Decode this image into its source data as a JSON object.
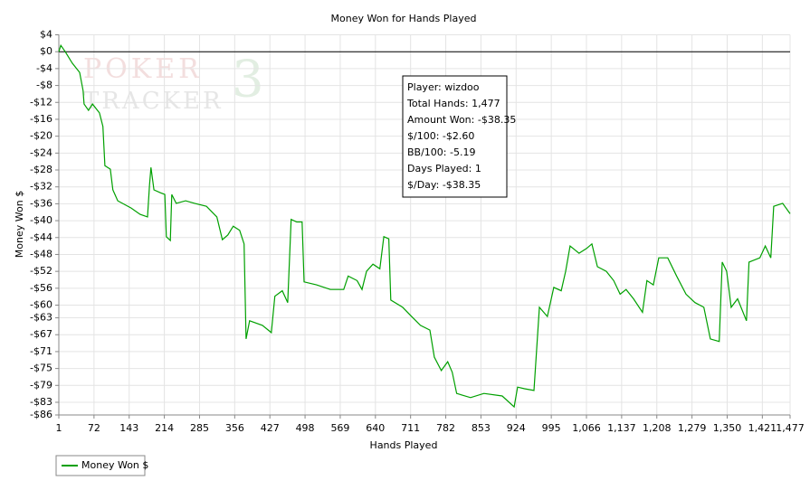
{
  "chart_data": {
    "type": "line",
    "title": "Money Won for Hands Played",
    "xlabel": "Hands Played",
    "ylabel": "Money Won $",
    "watermark": [
      "POKER",
      "TRACKER",
      "3"
    ],
    "info": [
      "Player: wizdoo",
      "Total Hands: 1,477",
      "Amount Won: -$38.35",
      "$/100: -$2.60",
      "BB/100: -5.19",
      "Days Played: 1",
      "$/Day: -$38.35"
    ],
    "xlim": [
      1,
      1477
    ],
    "ylim": [
      -86,
      4
    ],
    "grid": true,
    "xticks": [
      1,
      72,
      143,
      214,
      285,
      356,
      427,
      498,
      569,
      640,
      711,
      782,
      853,
      924,
      995,
      {
        "value": 1066,
        "label": "1,066"
      },
      {
        "value": 1137,
        "label": "1,137"
      },
      {
        "value": 1208,
        "label": "1,208"
      },
      {
        "value": 1279,
        "label": "1,279"
      },
      {
        "value": 1350,
        "label": "1,350"
      },
      {
        "value": 1421,
        "label": "1,421"
      },
      {
        "value": 1477,
        "label": "1,477"
      }
    ],
    "yticks": [
      {
        "value": 4,
        "label": "$4"
      },
      {
        "value": 0,
        "label": "$0"
      },
      {
        "value": -4,
        "label": "-$4"
      },
      {
        "value": -8,
        "label": "-$8"
      },
      {
        "value": -12,
        "label": "-$12"
      },
      {
        "value": -16,
        "label": "-$16"
      },
      {
        "value": -20,
        "label": "-$20"
      },
      {
        "value": -24,
        "label": "-$24"
      },
      {
        "value": -28,
        "label": "-$28"
      },
      {
        "value": -32,
        "label": "-$32"
      },
      {
        "value": -36,
        "label": "-$36"
      },
      {
        "value": -40,
        "label": "-$40"
      },
      {
        "value": -44,
        "label": "-$44"
      },
      {
        "value": -48,
        "label": "-$48"
      },
      {
        "value": -52,
        "label": "-$52"
      },
      {
        "value": -56,
        "label": "-$56"
      },
      {
        "value": -60,
        "label": "-$60"
      },
      {
        "value": -63,
        "label": "-$63"
      },
      {
        "value": -67,
        "label": "-$67"
      },
      {
        "value": -71,
        "label": "-$71"
      },
      {
        "value": -75,
        "label": "-$75"
      },
      {
        "value": -79,
        "label": "-$79"
      },
      {
        "value": -83,
        "label": "-$83"
      },
      {
        "value": -86,
        "label": "-$86"
      }
    ],
    "x": [
      1,
      5,
      14,
      28,
      43,
      50,
      52,
      61,
      69,
      83,
      90,
      94,
      105,
      110,
      120,
      147,
      165,
      180,
      184,
      187,
      193,
      206,
      215,
      218,
      226,
      229,
      238,
      257,
      275,
      299,
      320,
      331,
      342,
      353,
      366,
      375,
      379,
      386,
      412,
      430,
      437,
      452,
      463,
      470,
      481,
      492,
      496,
      521,
      549,
      576,
      585,
      603,
      613,
      622,
      635,
      649,
      657,
      667,
      671,
      695,
      713,
      731,
      750,
      759,
      773,
      786,
      795,
      804,
      832,
      859,
      896,
      920,
      927,
      941,
      960,
      971,
      987,
      1000,
      1015,
      1024,
      1033,
      1051,
      1066,
      1077,
      1088,
      1106,
      1121,
      1134,
      1146,
      1161,
      1179,
      1188,
      1201,
      1212,
      1230,
      1248,
      1267,
      1285,
      1303,
      1316,
      1334,
      1340,
      1349,
      1358,
      1371,
      1389,
      1394,
      1416,
      1427,
      1438,
      1444,
      1462,
      1477
    ],
    "series": [
      {
        "name": "Money Won $",
        "color": "#00a000",
        "values": [
          0,
          1.5,
          0,
          -2.7,
          -4.9,
          -9.2,
          -12.4,
          -13.9,
          -12.4,
          -14.5,
          -17.7,
          -27,
          -27.8,
          -32.7,
          -35.3,
          -37,
          -38.5,
          -39.1,
          -31.6,
          -27.4,
          -32.7,
          -33.4,
          -33.8,
          -43.8,
          -44.7,
          -33.8,
          -35.9,
          -35.3,
          -35.9,
          -36.6,
          -39.1,
          -44.5,
          -43.4,
          -41.3,
          -42.3,
          -45.5,
          -68,
          -63.7,
          -64.8,
          -66.5,
          -57.9,
          -56.6,
          -59.4,
          -39.7,
          -40.3,
          -40.3,
          -54.5,
          -55.2,
          -56.3,
          -56.3,
          -53.1,
          -54.2,
          -56.3,
          -52,
          -50.3,
          -51.4,
          -43.8,
          -44.3,
          -58.8,
          -60.5,
          -62.7,
          -64.8,
          -65.9,
          -72.3,
          -75.5,
          -73.4,
          -75.9,
          -80.9,
          -81.9,
          -80.9,
          -81.5,
          -84.1,
          -79.4,
          -79.8,
          -80.2,
          -60.5,
          -62.7,
          -55.8,
          -56.6,
          -52,
          -46,
          -47.7,
          -46.6,
          -45.5,
          -50.9,
          -52,
          -54.2,
          -57.4,
          -56.3,
          -58.5,
          -61.7,
          -54.2,
          -55.2,
          -48.8,
          -48.8,
          -53.1,
          -57.4,
          -59.4,
          -60.5,
          -68,
          -68.6,
          -49.8,
          -52,
          -60.5,
          -58.5,
          -63.7,
          -49.8,
          -48.8,
          -46,
          -48.8,
          -36.6,
          -35.9,
          -38.35
        ]
      }
    ]
  }
}
